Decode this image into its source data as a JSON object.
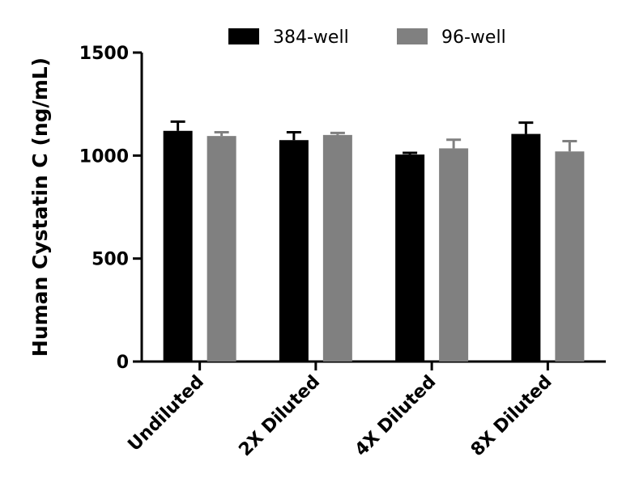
{
  "chart_data": {
    "type": "bar",
    "categories": [
      "Undiluted",
      "2X Diluted",
      "4X Diluted",
      "8X Diluted"
    ],
    "series": [
      {
        "name": "384-well",
        "color": "#000000",
        "values": [
          1120,
          1075,
          1005,
          1105
        ],
        "errors": [
          45,
          38,
          8,
          55
        ]
      },
      {
        "name": "96-well",
        "color": "#808080",
        "values": [
          1095,
          1100,
          1035,
          1020
        ],
        "errors": [
          18,
          10,
          42,
          50
        ]
      }
    ],
    "ylabel": "Human Cystatin C (ng/mL)",
    "ylim": [
      0,
      1500
    ],
    "yticks": [
      0,
      500,
      1000,
      1500
    ],
    "legend_position": "top",
    "grid": false
  }
}
